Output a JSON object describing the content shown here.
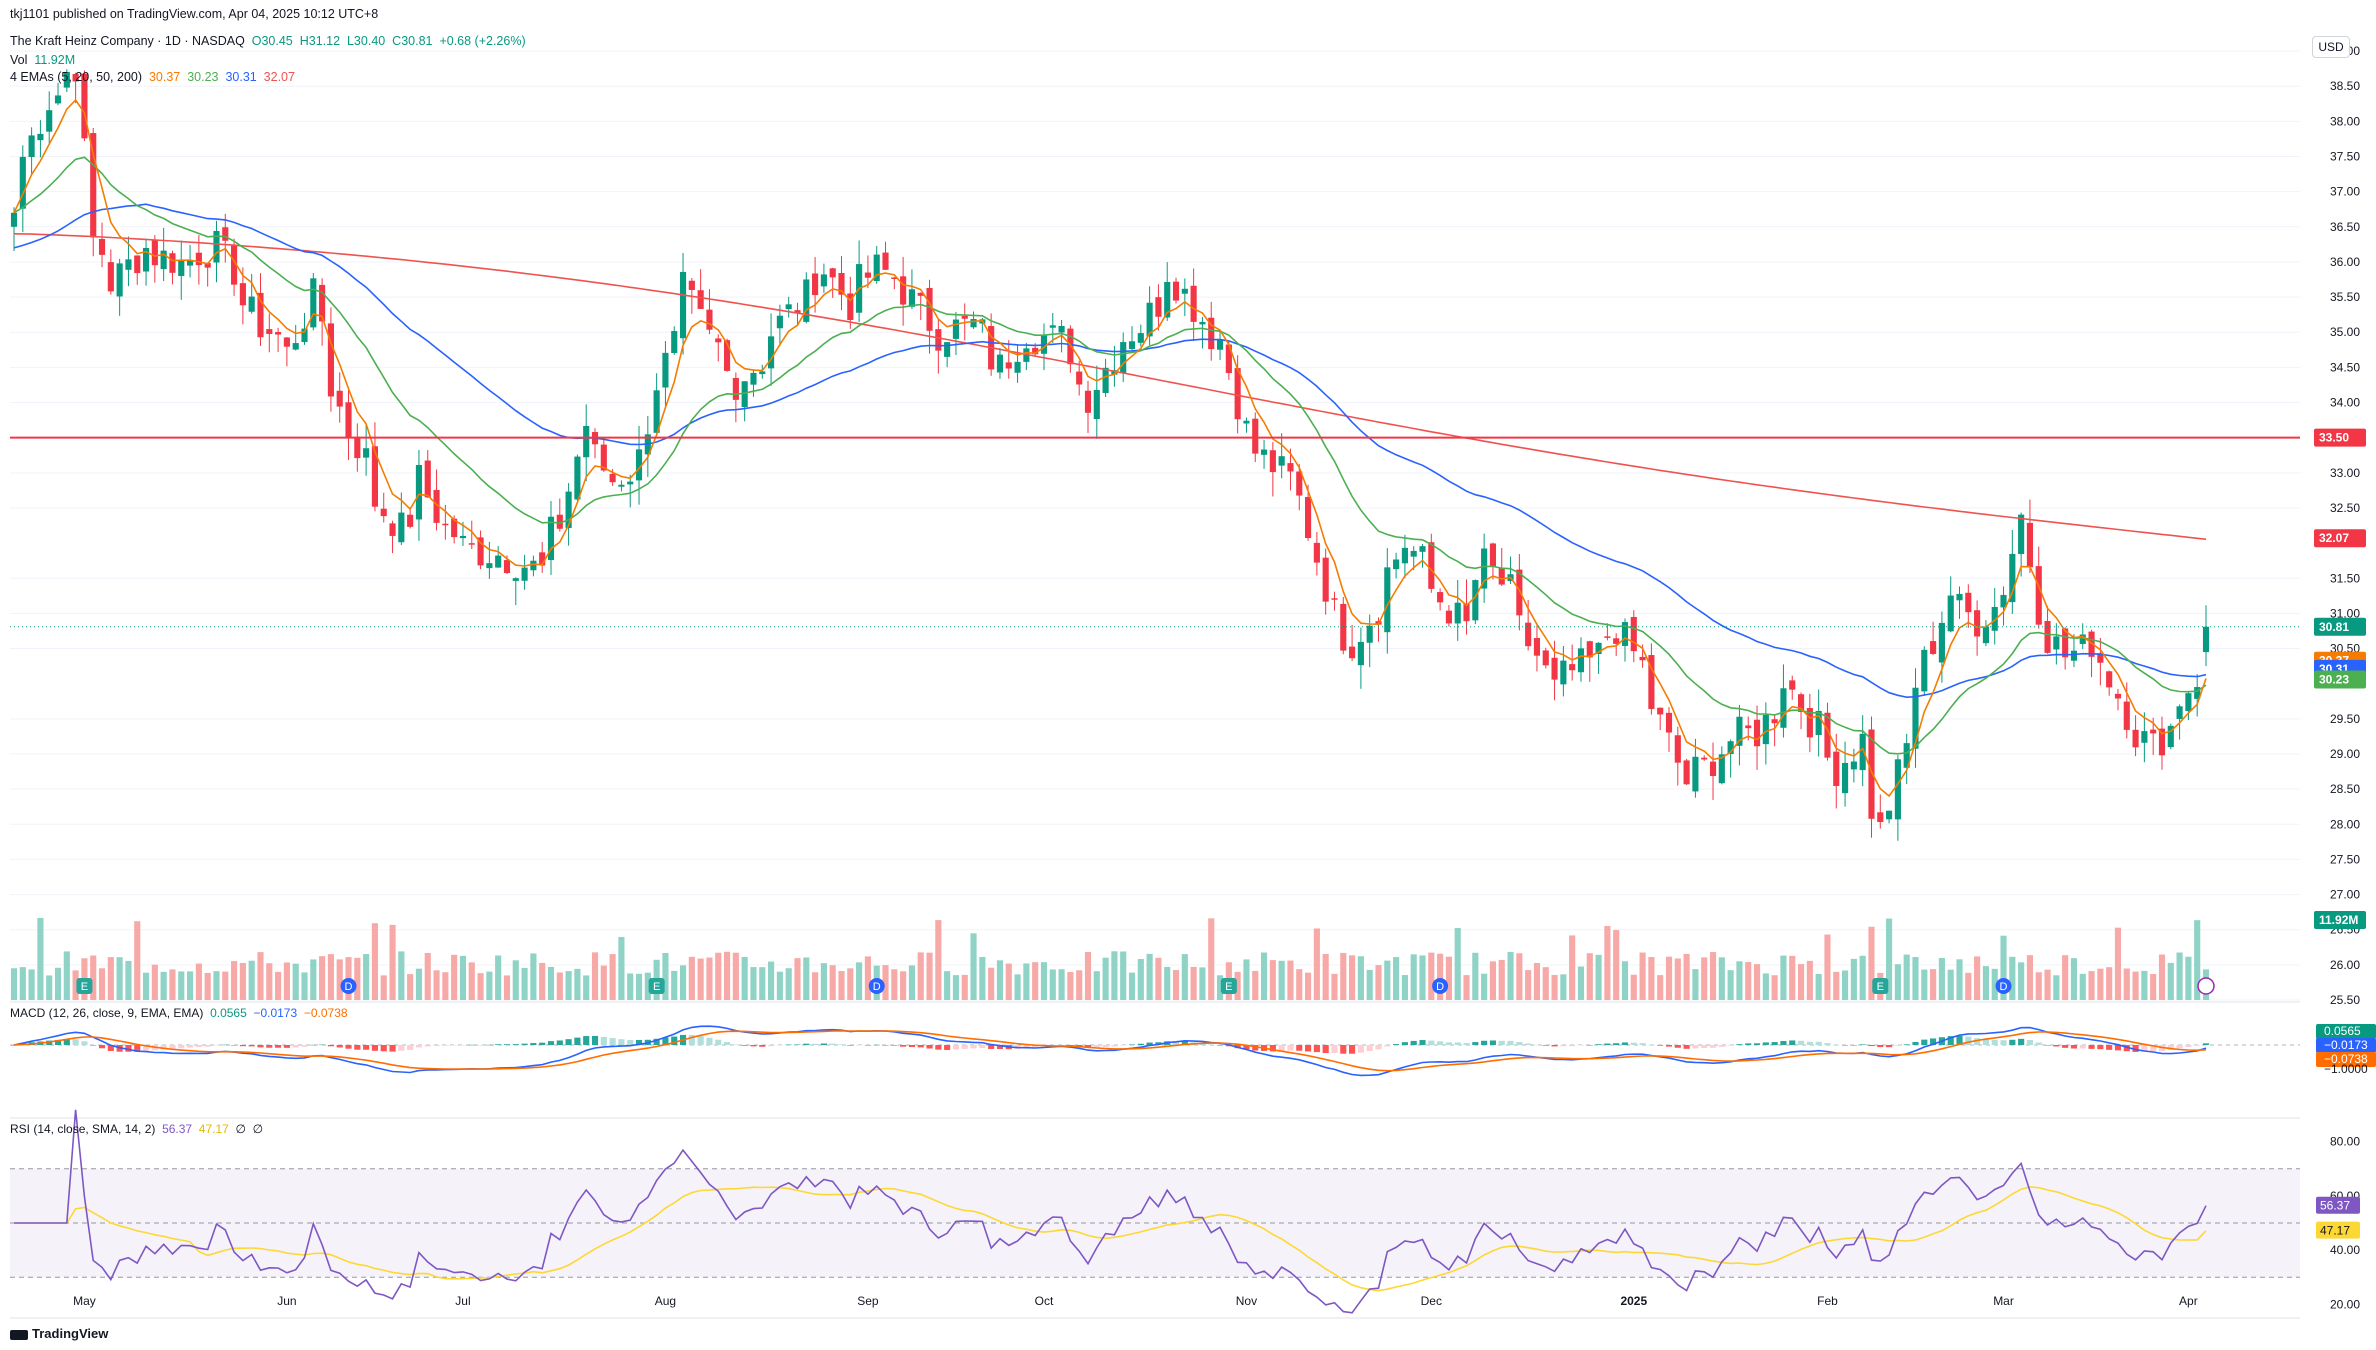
{
  "header": {
    "published": "tkj1101 published on TradingView.com, Apr 04, 2025 10:12 UTC+8",
    "symbol_line": "The Kraft Heinz Company · 1D · NASDAQ",
    "o": "O30.45",
    "h": "H31.12",
    "l": "L30.40",
    "c": "C30.81",
    "change": "+0.68 (+2.26%)",
    "vol_label": "Vol",
    "vol_value": "11.92M",
    "ema_label": "4 EMAs (5, 20, 50, 200)",
    "ema_values": [
      "30.37",
      "30.23",
      "30.31",
      "32.07"
    ],
    "currency": "USD"
  },
  "macd_legend": {
    "label": "MACD (12, 26, close, 9, EMA, EMA)",
    "values": [
      "0.0565",
      "−0.0173",
      "−0.0738"
    ]
  },
  "rsi_legend": {
    "label": "RSI (14, close, SMA, 14, 2)",
    "values": [
      "56.37",
      "47.17",
      "∅",
      "∅"
    ]
  },
  "footer": {
    "brand": "TradingView"
  },
  "colors": {
    "up": "#089981",
    "down": "#f23645",
    "ema5": "#f57c00",
    "ema20": "#4caf50",
    "ema50": "#2962ff",
    "ema200": "#ef5350",
    "macd": "#2962ff",
    "signal": "#ff6d00",
    "rsi": "#7e57c2",
    "rsi_ma": "#fdd835",
    "hline": "#f23645"
  },
  "chart_data": [
    {
      "type": "candlestick",
      "title": "The Kraft Heinz Company · 1D · NASDAQ",
      "y_axis_labels": [
        "39.00",
        "38.50",
        "38.00",
        "37.50",
        "37.00",
        "36.50",
        "36.00",
        "35.50",
        "35.00",
        "34.50",
        "34.00",
        "33.00",
        "32.50",
        "31.50",
        "31.00",
        "30.50",
        "29.50",
        "29.00",
        "28.50",
        "28.00",
        "27.50",
        "27.00",
        "26.50",
        "26.00",
        "25.50"
      ],
      "ylim": [
        25.5,
        39.3
      ],
      "x_axis_labels": [
        "May",
        "Jun",
        "Jul",
        "Aug",
        "Sep",
        "Oct",
        "Nov",
        "Dec",
        "2025",
        "Feb",
        "Mar",
        "Apr"
      ],
      "horizontal_line": 33.5,
      "price_labels": [
        {
          "text": "33.50",
          "color": "#f23645"
        },
        {
          "text": "32.07",
          "color": "#f23645"
        },
        {
          "text": "30.81",
          "color": "#089981"
        },
        {
          "text": "30.37",
          "color": "#f57c00"
        },
        {
          "text": "30.31",
          "color": "#2962ff"
        },
        {
          "text": "30.23",
          "color": "#4caf50"
        },
        {
          "text": "11.92M",
          "color": "#089981"
        }
      ],
      "close_anchors": [
        [
          "2024-04-19",
          36.7
        ],
        [
          "2024-04-25",
          38.3
        ],
        [
          "2024-04-30",
          38.8
        ],
        [
          "2024-05-02",
          36.3
        ],
        [
          "2024-05-06",
          35.7
        ],
        [
          "2024-05-10",
          36.2
        ],
        [
          "2024-05-16",
          36.0
        ],
        [
          "2024-05-22",
          36.2
        ],
        [
          "2024-05-29",
          35.1
        ],
        [
          "2024-06-03",
          34.7
        ],
        [
          "2024-06-06",
          35.5
        ],
        [
          "2024-06-12",
          33.6
        ],
        [
          "2024-06-17",
          32.6
        ],
        [
          "2024-06-20",
          32.2
        ],
        [
          "2024-06-24",
          32.9
        ],
        [
          "2024-06-27",
          32.2
        ],
        [
          "2024-07-02",
          31.9
        ],
        [
          "2024-07-08",
          31.8
        ],
        [
          "2024-07-12",
          31.6
        ],
        [
          "2024-07-16",
          32.3
        ],
        [
          "2024-07-19",
          33.7
        ],
        [
          "2024-07-24",
          32.9
        ],
        [
          "2024-07-29",
          33.2
        ],
        [
          "2024-07-31",
          34.3
        ],
        [
          "2024-08-05",
          35.6
        ],
        [
          "2024-08-08",
          34.9
        ],
        [
          "2024-08-13",
          34.3
        ],
        [
          "2024-08-16",
          34.6
        ],
        [
          "2024-08-22",
          35.4
        ],
        [
          "2024-08-27",
          35.9
        ],
        [
          "2024-08-30",
          35.4
        ],
        [
          "2024-09-04",
          35.9
        ],
        [
          "2024-09-09",
          35.6
        ],
        [
          "2024-09-13",
          35.0
        ],
        [
          "2024-09-19",
          35.1
        ],
        [
          "2024-09-24",
          34.5
        ],
        [
          "2024-09-27",
          35.0
        ],
        [
          "2024-10-03",
          34.9
        ],
        [
          "2024-10-08",
          34.1
        ],
        [
          "2024-10-11",
          34.7
        ],
        [
          "2024-10-16",
          35.1
        ],
        [
          "2024-10-21",
          35.9
        ],
        [
          "2024-10-25",
          35.2
        ],
        [
          "2024-10-29",
          34.9
        ],
        [
          "2024-11-01",
          33.6
        ],
        [
          "2024-11-06",
          33.1
        ],
        [
          "2024-11-11",
          32.6
        ],
        [
          "2024-11-15",
          31.0
        ],
        [
          "2024-11-19",
          30.6
        ],
        [
          "2024-11-25",
          31.6
        ],
        [
          "2024-11-27",
          32.0
        ],
        [
          "2024-12-03",
          31.2
        ],
        [
          "2024-12-06",
          30.8
        ],
        [
          "2024-12-10",
          31.7
        ],
        [
          "2024-12-13",
          31.3
        ],
        [
          "2024-12-18",
          30.4
        ],
        [
          "2024-12-20",
          29.9
        ],
        [
          "2024-12-26",
          30.3
        ],
        [
          "2024-12-31",
          30.8
        ],
        [
          "2025-01-06",
          29.7
        ],
        [
          "2025-01-10",
          28.6
        ],
        [
          "2025-01-14",
          28.8
        ],
        [
          "2025-01-17",
          29.2
        ],
        [
          "2025-01-22",
          29.3
        ],
        [
          "2025-01-27",
          30.1
        ],
        [
          "2025-01-30",
          29.5
        ],
        [
          "2025-02-04",
          28.8
        ],
        [
          "2025-02-07",
          29.2
        ],
        [
          "2025-02-11",
          27.9
        ],
        [
          "2025-02-14",
          29.1
        ],
        [
          "2025-02-19",
          30.6
        ],
        [
          "2025-02-21",
          31.3
        ],
        [
          "2025-02-26",
          30.9
        ],
        [
          "2025-03-03",
          31.4
        ],
        [
          "2025-03-05",
          32.4
        ],
        [
          "2025-03-07",
          31.1
        ],
        [
          "2025-03-12",
          30.4
        ],
        [
          "2025-03-17",
          30.6
        ],
        [
          "2025-03-21",
          29.6
        ],
        [
          "2025-03-26",
          29.1
        ],
        [
          "2025-03-31",
          29.8
        ],
        [
          "2025-04-02",
          30.1
        ],
        [
          "2025-04-03",
          30.81
        ]
      ],
      "series": [
        {
          "name": "EMA 5",
          "last": 30.37
        },
        {
          "name": "EMA 20",
          "last": 30.23
        },
        {
          "name": "EMA 50",
          "last": 30.31
        },
        {
          "name": "EMA 200",
          "last": 32.07
        }
      ],
      "volume_last": "11.92M"
    },
    {
      "type": "bar+line",
      "title": "MACD (12, 26, close, 9, EMA, EMA)",
      "y_axis_labels": [
        "0.0565",
        "−0.0173",
        "−0.0738",
        "−1.0000"
      ],
      "last": {
        "macd": 0.0565,
        "signal": -0.0173,
        "histogram": -0.0738
      }
    },
    {
      "type": "line",
      "title": "RSI (14, close, SMA, 14, 2)",
      "y_axis_labels": [
        "80.00",
        "60.00",
        "40.00",
        "20.00"
      ],
      "bands": [
        70,
        50,
        30
      ],
      "ylim": [
        15,
        85
      ],
      "last": {
        "rsi": 56.37,
        "ma": 47.17
      }
    }
  ]
}
